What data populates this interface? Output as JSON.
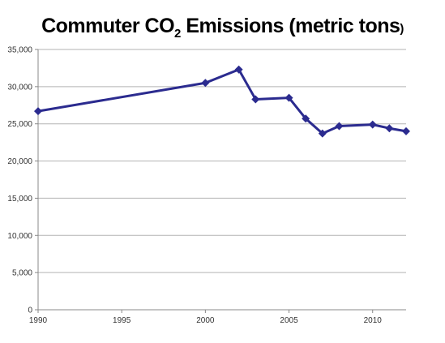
{
  "chart_data": {
    "type": "line",
    "title": {
      "main": "Commuter CO",
      "subscript": "2",
      "rest": " Emissions (metric tons",
      "close": ")"
    },
    "xlabel": "",
    "ylabel": "",
    "xlim": [
      1990,
      2012
    ],
    "ylim": [
      0,
      35000
    ],
    "x_ticks": [
      1990,
      1995,
      2000,
      2005,
      2010
    ],
    "x_tick_labels": [
      "1990",
      "1995",
      "2000",
      "2005",
      "2010"
    ],
    "y_ticks": [
      0,
      5000,
      10000,
      15000,
      20000,
      25000,
      30000,
      35000
    ],
    "y_tick_labels": [
      "0",
      "5,000",
      "10,000",
      "15,000",
      "20,000",
      "25,000",
      "30,000",
      "35,000"
    ],
    "grid": "horizontal",
    "line_color": "#2b2b8f",
    "series": [
      {
        "x": [
          1990,
          2000,
          2002,
          2003,
          2005,
          2006,
          2007,
          2008,
          2010,
          2011,
          2012
        ],
        "values": [
          26700,
          30500,
          32300,
          28300,
          28500,
          25700,
          23700,
          24700,
          24900,
          24400,
          24000
        ]
      }
    ]
  }
}
